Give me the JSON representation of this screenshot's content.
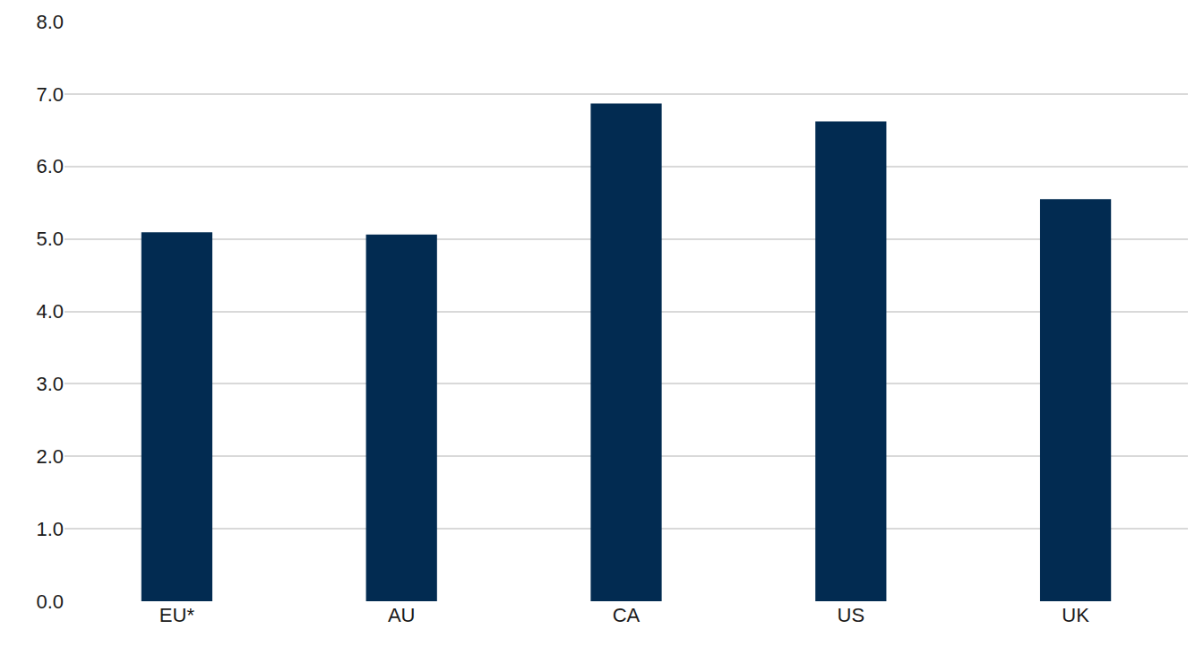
{
  "chart_data": {
    "type": "bar",
    "categories": [
      "EU*",
      "AU",
      "CA",
      "US",
      "UK"
    ],
    "values": [
      5.09,
      5.06,
      6.87,
      6.62,
      5.55
    ],
    "color": "#022b51",
    "ylim": [
      0,
      8
    ],
    "yticks": [
      {
        "value": 0,
        "label": "0.0"
      },
      {
        "value": 1,
        "label": "1.0"
      },
      {
        "value": 2,
        "label": "2.0"
      },
      {
        "value": 3,
        "label": "3.0"
      },
      {
        "value": 4,
        "label": "4.0"
      },
      {
        "value": 5,
        "label": "5.0"
      },
      {
        "value": 6,
        "label": "6.0"
      },
      {
        "value": 7,
        "label": "7.0"
      },
      {
        "value": 8,
        "label": "8.0"
      }
    ],
    "grid": true
  }
}
